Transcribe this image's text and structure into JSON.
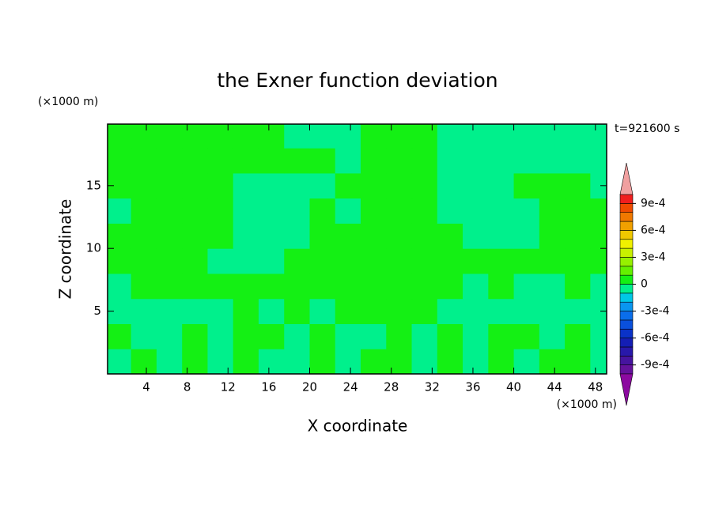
{
  "chart_data": {
    "type": "contour",
    "title": "the Exner function deviation",
    "x_label": "X coordinate",
    "y_label": "Z coordinate",
    "x_unit": "(×1000 m)",
    "y_unit": "(×1000 m)",
    "time_label": "t=921600 s",
    "xlim": [
      0.2,
      49.1
    ],
    "ylim": [
      0,
      19.9
    ],
    "xticks": [
      4,
      8,
      12,
      16,
      20,
      24,
      28,
      32,
      36,
      40,
      44,
      48
    ],
    "yticks": [
      5,
      10,
      15
    ],
    "x": [
      1.25,
      3.75,
      6.25,
      8.75,
      11.25,
      13.75,
      16.25,
      18.75,
      21.25,
      23.75,
      26.25,
      28.75,
      31.25,
      33.75,
      36.25,
      38.75,
      41.25,
      43.75,
      46.25,
      48.75
    ],
    "y": [
      1,
      3,
      5,
      7,
      9,
      11,
      13,
      15,
      17,
      19
    ],
    "z": [
      [
        -5e-05,
        5e-05,
        -5e-05,
        5e-05,
        -5e-05,
        5e-05,
        -5e-05,
        -5e-05,
        5e-05,
        -5e-05,
        5e-05,
        5e-05,
        -5e-05,
        5e-05,
        -5e-05,
        5e-05,
        -5e-05,
        5e-05,
        5e-05,
        -5e-05
      ],
      [
        5e-05,
        -5e-05,
        -5e-05,
        5e-05,
        -5e-05,
        5e-05,
        5e-05,
        -5e-05,
        5e-05,
        -5e-05,
        -5e-05,
        5e-05,
        -5e-05,
        5e-05,
        -5e-05,
        5e-05,
        5e-05,
        -5e-05,
        5e-05,
        -5e-05
      ],
      [
        -5e-05,
        -5e-05,
        -5e-05,
        -5e-05,
        -5e-05,
        5e-05,
        -5e-05,
        5e-05,
        -5e-05,
        5e-05,
        5e-05,
        5e-05,
        5e-05,
        -5e-05,
        -5e-05,
        -5e-05,
        -5e-05,
        -5e-05,
        -5e-05,
        -5e-05
      ],
      [
        -5e-05,
        5e-05,
        5e-05,
        5e-05,
        5e-05,
        5e-05,
        5e-05,
        5e-05,
        5e-05,
        5e-05,
        5e-05,
        5e-05,
        5e-05,
        5e-05,
        -5e-05,
        5e-05,
        -5e-05,
        -5e-05,
        5e-05,
        -5e-05
      ],
      [
        5e-05,
        5e-05,
        5e-05,
        5e-05,
        -5e-05,
        -5e-05,
        -5e-05,
        5e-05,
        5e-05,
        5e-05,
        5e-05,
        5e-05,
        5e-05,
        5e-05,
        5e-05,
        5e-05,
        5e-05,
        5e-05,
        5e-05,
        5e-05
      ],
      [
        5e-05,
        5e-05,
        5e-05,
        5e-05,
        5e-05,
        -5e-05,
        -5e-05,
        -5e-05,
        5e-05,
        5e-05,
        5e-05,
        5e-05,
        5e-05,
        5e-05,
        -5e-05,
        -5e-05,
        -5e-05,
        5e-05,
        5e-05,
        5e-05
      ],
      [
        -5e-05,
        5e-05,
        5e-05,
        5e-05,
        5e-05,
        -5e-05,
        -5e-05,
        -5e-05,
        5e-05,
        -5e-05,
        5e-05,
        5e-05,
        5e-05,
        -5e-05,
        -5e-05,
        -5e-05,
        -5e-05,
        5e-05,
        5e-05,
        5e-05
      ],
      [
        5e-05,
        5e-05,
        5e-05,
        5e-05,
        5e-05,
        -5e-05,
        -5e-05,
        -5e-05,
        -5e-05,
        5e-05,
        5e-05,
        5e-05,
        5e-05,
        -5e-05,
        -5e-05,
        -5e-05,
        5e-05,
        5e-05,
        5e-05,
        -5e-05
      ],
      [
        5e-05,
        5e-05,
        5e-05,
        5e-05,
        5e-05,
        5e-05,
        5e-05,
        5e-05,
        5e-05,
        -5e-05,
        5e-05,
        5e-05,
        5e-05,
        -5e-05,
        -5e-05,
        -5e-05,
        -5e-05,
        -5e-05,
        -5e-05,
        -5e-05
      ],
      [
        5e-05,
        5e-05,
        5e-05,
        5e-05,
        5e-05,
        5e-05,
        5e-05,
        -5e-05,
        -5e-05,
        -5e-05,
        5e-05,
        5e-05,
        5e-05,
        -5e-05,
        -5e-05,
        -5e-05,
        -5e-05,
        -5e-05,
        -5e-05,
        -5e-05
      ]
    ],
    "colorbar": {
      "levels": [
        -0.001,
        -0.0009,
        -0.0008,
        -0.0007,
        -0.0006,
        -0.0005,
        -0.0004,
        -0.0003,
        -0.0002,
        -0.0001,
        0,
        0.0001,
        0.0002,
        0.0003,
        0.0004,
        0.0005,
        0.0006,
        0.0007,
        0.0008,
        0.0009,
        0.001
      ],
      "colors": [
        "#64129b",
        "#46149f",
        "#2818aa",
        "#141eb4",
        "#0a32c8",
        "#0a50dc",
        "#0a6eeb",
        "#0a96f0",
        "#00c8e6",
        "#00f08c",
        "#14f014",
        "#64f000",
        "#96f000",
        "#c8f000",
        "#f0f000",
        "#f0c800",
        "#f0a000",
        "#f07800",
        "#f04b00",
        "#f01e1e"
      ],
      "under_color": "#8c0aa0",
      "over_color": "#f0a0a0",
      "ticks": [
        {
          "value": 0.0009,
          "label": "9e-4"
        },
        {
          "value": 0.0006,
          "label": "6e-4"
        },
        {
          "value": 0.0003,
          "label": "3e-4"
        },
        0,
        {
          "value": -0.0003,
          "label": "-3e-4"
        },
        {
          "value": -0.0006,
          "label": "-6e-4"
        },
        {
          "value": -0.0009,
          "label": "-9e-4"
        }
      ]
    }
  }
}
